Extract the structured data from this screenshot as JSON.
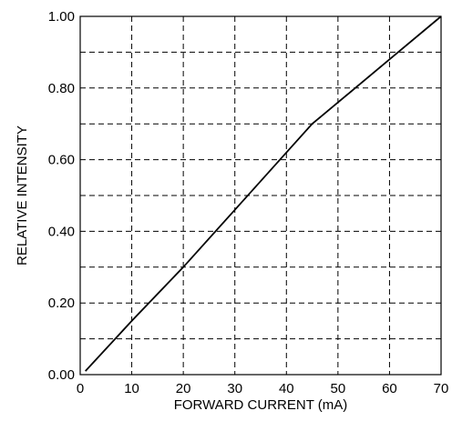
{
  "chart_data": {
    "type": "line",
    "xlabel": "FORWARD CURRENT (mA)",
    "ylabel": "RELATIVE INTENSITY",
    "xlim": [
      0,
      70
    ],
    "ylim": [
      0,
      1.0
    ],
    "x_ticks": [
      0,
      10,
      20,
      30,
      40,
      50,
      60,
      70
    ],
    "y_ticks": [
      0,
      0.2,
      0.4,
      0.6,
      0.8,
      1.0
    ],
    "x_tick_labels": [
      "0",
      "10",
      "20",
      "30",
      "40",
      "50",
      "60",
      "70"
    ],
    "y_tick_labels": [
      "0.00",
      "0.20",
      "0.40",
      "0.60",
      "0.80",
      "1.00"
    ],
    "x_grid_step": 10,
    "y_grid_step": 0.1,
    "grid": true,
    "series": [
      {
        "x": [
          1,
          10,
          20,
          30,
          40,
          45,
          50,
          60,
          70
        ],
        "y": [
          0.01,
          0.15,
          0.3,
          0.46,
          0.62,
          0.7,
          0.76,
          0.88,
          1.0
        ]
      }
    ]
  }
}
